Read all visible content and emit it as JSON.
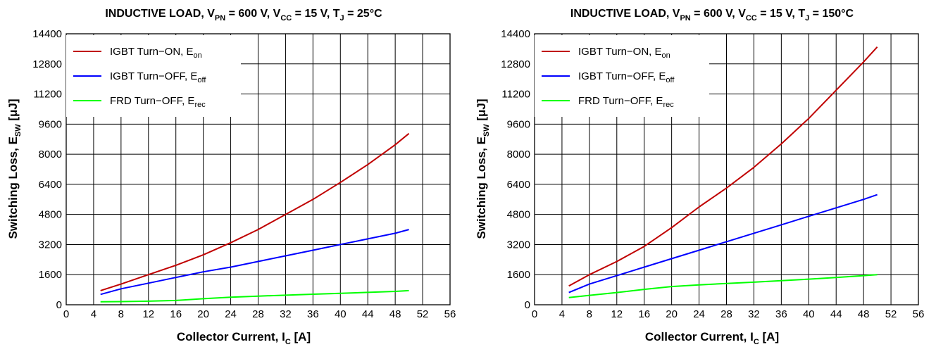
{
  "charts": [
    {
      "title": {
        "main": "INDUCTIVE LOAD, V",
        "s1": "PN",
        "m1": " = 600 V, V",
        "s2": "CC",
        "m2": " = 15 V, T",
        "s3": "J",
        "m3": " = 25°C"
      },
      "xlabel": {
        "main": "Collector Current, I",
        "sub": "C",
        "end": " [A]"
      },
      "ylabel": {
        "main": "Switching Loss, E",
        "sub": "SW",
        "end": " [μJ]"
      },
      "legend": [
        {
          "main": "IGBT Turn−ON, E",
          "sub": "on",
          "color": "#c00000"
        },
        {
          "main": "IGBT Turn−OFF, E",
          "sub": "off",
          "color": "#0000ff"
        },
        {
          "main": "FRD Turn−OFF, E",
          "sub": "rec",
          "color": "#00ff00"
        }
      ]
    },
    {
      "title": {
        "main": "INDUCTIVE LOAD, V",
        "s1": "PN",
        "m1": " = 600 V, V",
        "s2": "CC",
        "m2": " = 15 V, T",
        "s3": "J",
        "m3": " = 150°C"
      },
      "xlabel": {
        "main": "Collector Current, I",
        "sub": "C",
        "end": " [A]"
      },
      "ylabel": {
        "main": "Switching Loss, E",
        "sub": "SW",
        "end": " [μJ]"
      },
      "legend": [
        {
          "main": "IGBT Turn−ON, E",
          "sub": "on",
          "color": "#c00000"
        },
        {
          "main": "IGBT Turn−OFF, E",
          "sub": "off",
          "color": "#0000ff"
        },
        {
          "main": "FRD Turn−OFF, E",
          "sub": "rec",
          "color": "#00ff00"
        }
      ]
    }
  ],
  "chart_data": [
    {
      "type": "line",
      "xlim": [
        0,
        56
      ],
      "ylim": [
        0,
        14400
      ],
      "xticks": [
        "0",
        "4",
        "8",
        "12",
        "16",
        "20",
        "24",
        "28",
        "32",
        "36",
        "40",
        "44",
        "48",
        "52",
        "56"
      ],
      "yticks": [
        "0",
        "1600",
        "3200",
        "4800",
        "6400",
        "8000",
        "9600",
        "11200",
        "12800",
        "14400"
      ],
      "grid": true,
      "legend_position": "top-left",
      "series": [
        {
          "name": "IGBT Turn−ON, Eon",
          "color": "#c00000",
          "x": [
            5,
            8,
            12,
            16,
            20,
            24,
            28,
            32,
            36,
            40,
            44,
            48,
            50
          ],
          "y": [
            750,
            1100,
            1600,
            2100,
            2650,
            3300,
            4000,
            4800,
            5600,
            6500,
            7450,
            8500,
            9100
          ]
        },
        {
          "name": "IGBT Turn−OFF, Eoff",
          "color": "#0000ff",
          "x": [
            5,
            8,
            12,
            16,
            20,
            24,
            28,
            32,
            36,
            40,
            44,
            48,
            50
          ],
          "y": [
            550,
            850,
            1150,
            1450,
            1750,
            2000,
            2300,
            2600,
            2900,
            3200,
            3500,
            3800,
            4000
          ]
        },
        {
          "name": "FRD Turn−OFF, Erec",
          "color": "#00ff00",
          "x": [
            5,
            8,
            12,
            16,
            20,
            24,
            28,
            32,
            36,
            40,
            44,
            48,
            50
          ],
          "y": [
            160,
            170,
            190,
            230,
            320,
            400,
            460,
            510,
            560,
            610,
            660,
            710,
            750
          ]
        }
      ]
    },
    {
      "type": "line",
      "xlim": [
        0,
        56
      ],
      "ylim": [
        0,
        14400
      ],
      "xticks": [
        "0",
        "4",
        "8",
        "12",
        "16",
        "20",
        "24",
        "28",
        "32",
        "36",
        "40",
        "44",
        "48",
        "52",
        "56"
      ],
      "yticks": [
        "0",
        "1600",
        "3200",
        "4800",
        "6400",
        "8000",
        "9600",
        "11200",
        "12800",
        "14400"
      ],
      "grid": true,
      "legend_position": "top-left",
      "series": [
        {
          "name": "IGBT Turn−ON, Eon",
          "color": "#c00000",
          "x": [
            5,
            8,
            12,
            16,
            20,
            24,
            28,
            32,
            36,
            40,
            44,
            48,
            50
          ],
          "y": [
            1000,
            1600,
            2300,
            3100,
            4100,
            5200,
            6200,
            7300,
            8550,
            9900,
            11400,
            12900,
            13700
          ]
        },
        {
          "name": "IGBT Turn−OFF, Eoff",
          "color": "#0000ff",
          "x": [
            5,
            8,
            12,
            16,
            20,
            24,
            28,
            32,
            36,
            40,
            44,
            48,
            50
          ],
          "y": [
            650,
            1100,
            1550,
            2000,
            2450,
            2900,
            3350,
            3800,
            4250,
            4700,
            5150,
            5600,
            5850
          ]
        },
        {
          "name": "FRD Turn−OFF, Erec",
          "color": "#00ff00",
          "x": [
            5,
            8,
            12,
            16,
            20,
            24,
            28,
            32,
            36,
            40,
            44,
            48,
            50
          ],
          "y": [
            380,
            500,
            650,
            820,
            970,
            1060,
            1130,
            1200,
            1280,
            1360,
            1450,
            1550,
            1600
          ]
        }
      ]
    }
  ]
}
